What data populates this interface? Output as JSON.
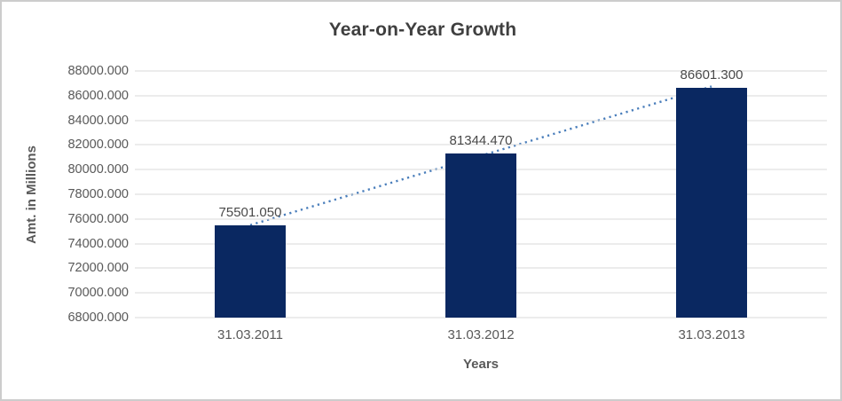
{
  "chart_data": {
    "type": "bar",
    "title": "Year-on-Year Growth",
    "xlabel": "Years",
    "ylabel": "Amt. in Millions",
    "categories": [
      "31.03.2011",
      "31.03.2012",
      "31.03.2013"
    ],
    "values": [
      75501.05,
      81344.47,
      86601.3
    ],
    "value_labels": [
      "75501.050",
      "81344.470",
      "86601.300"
    ],
    "ylim": [
      68000,
      88000
    ],
    "ytick_step": 2000,
    "ytick_labels": [
      "88000.000",
      "86000.000",
      "84000.000",
      "82000.000",
      "80000.000",
      "78000.000",
      "76000.000",
      "74000.000",
      "72000.000",
      "70000.000",
      "68000.000"
    ],
    "grid": true,
    "legend_position": "none",
    "trendline": {
      "type": "linear",
      "style": "dotted",
      "from_category": "31.03.2011",
      "to_category": "31.03.2013"
    },
    "colors": {
      "bar": "#0a2861",
      "trendline": "#4a7ebb",
      "gridline": "#d9d9d9",
      "title_text": "#3f3f3f",
      "axis_text": "#595959",
      "data_label_text": "#494949",
      "frame_border": "#cccccc"
    }
  }
}
